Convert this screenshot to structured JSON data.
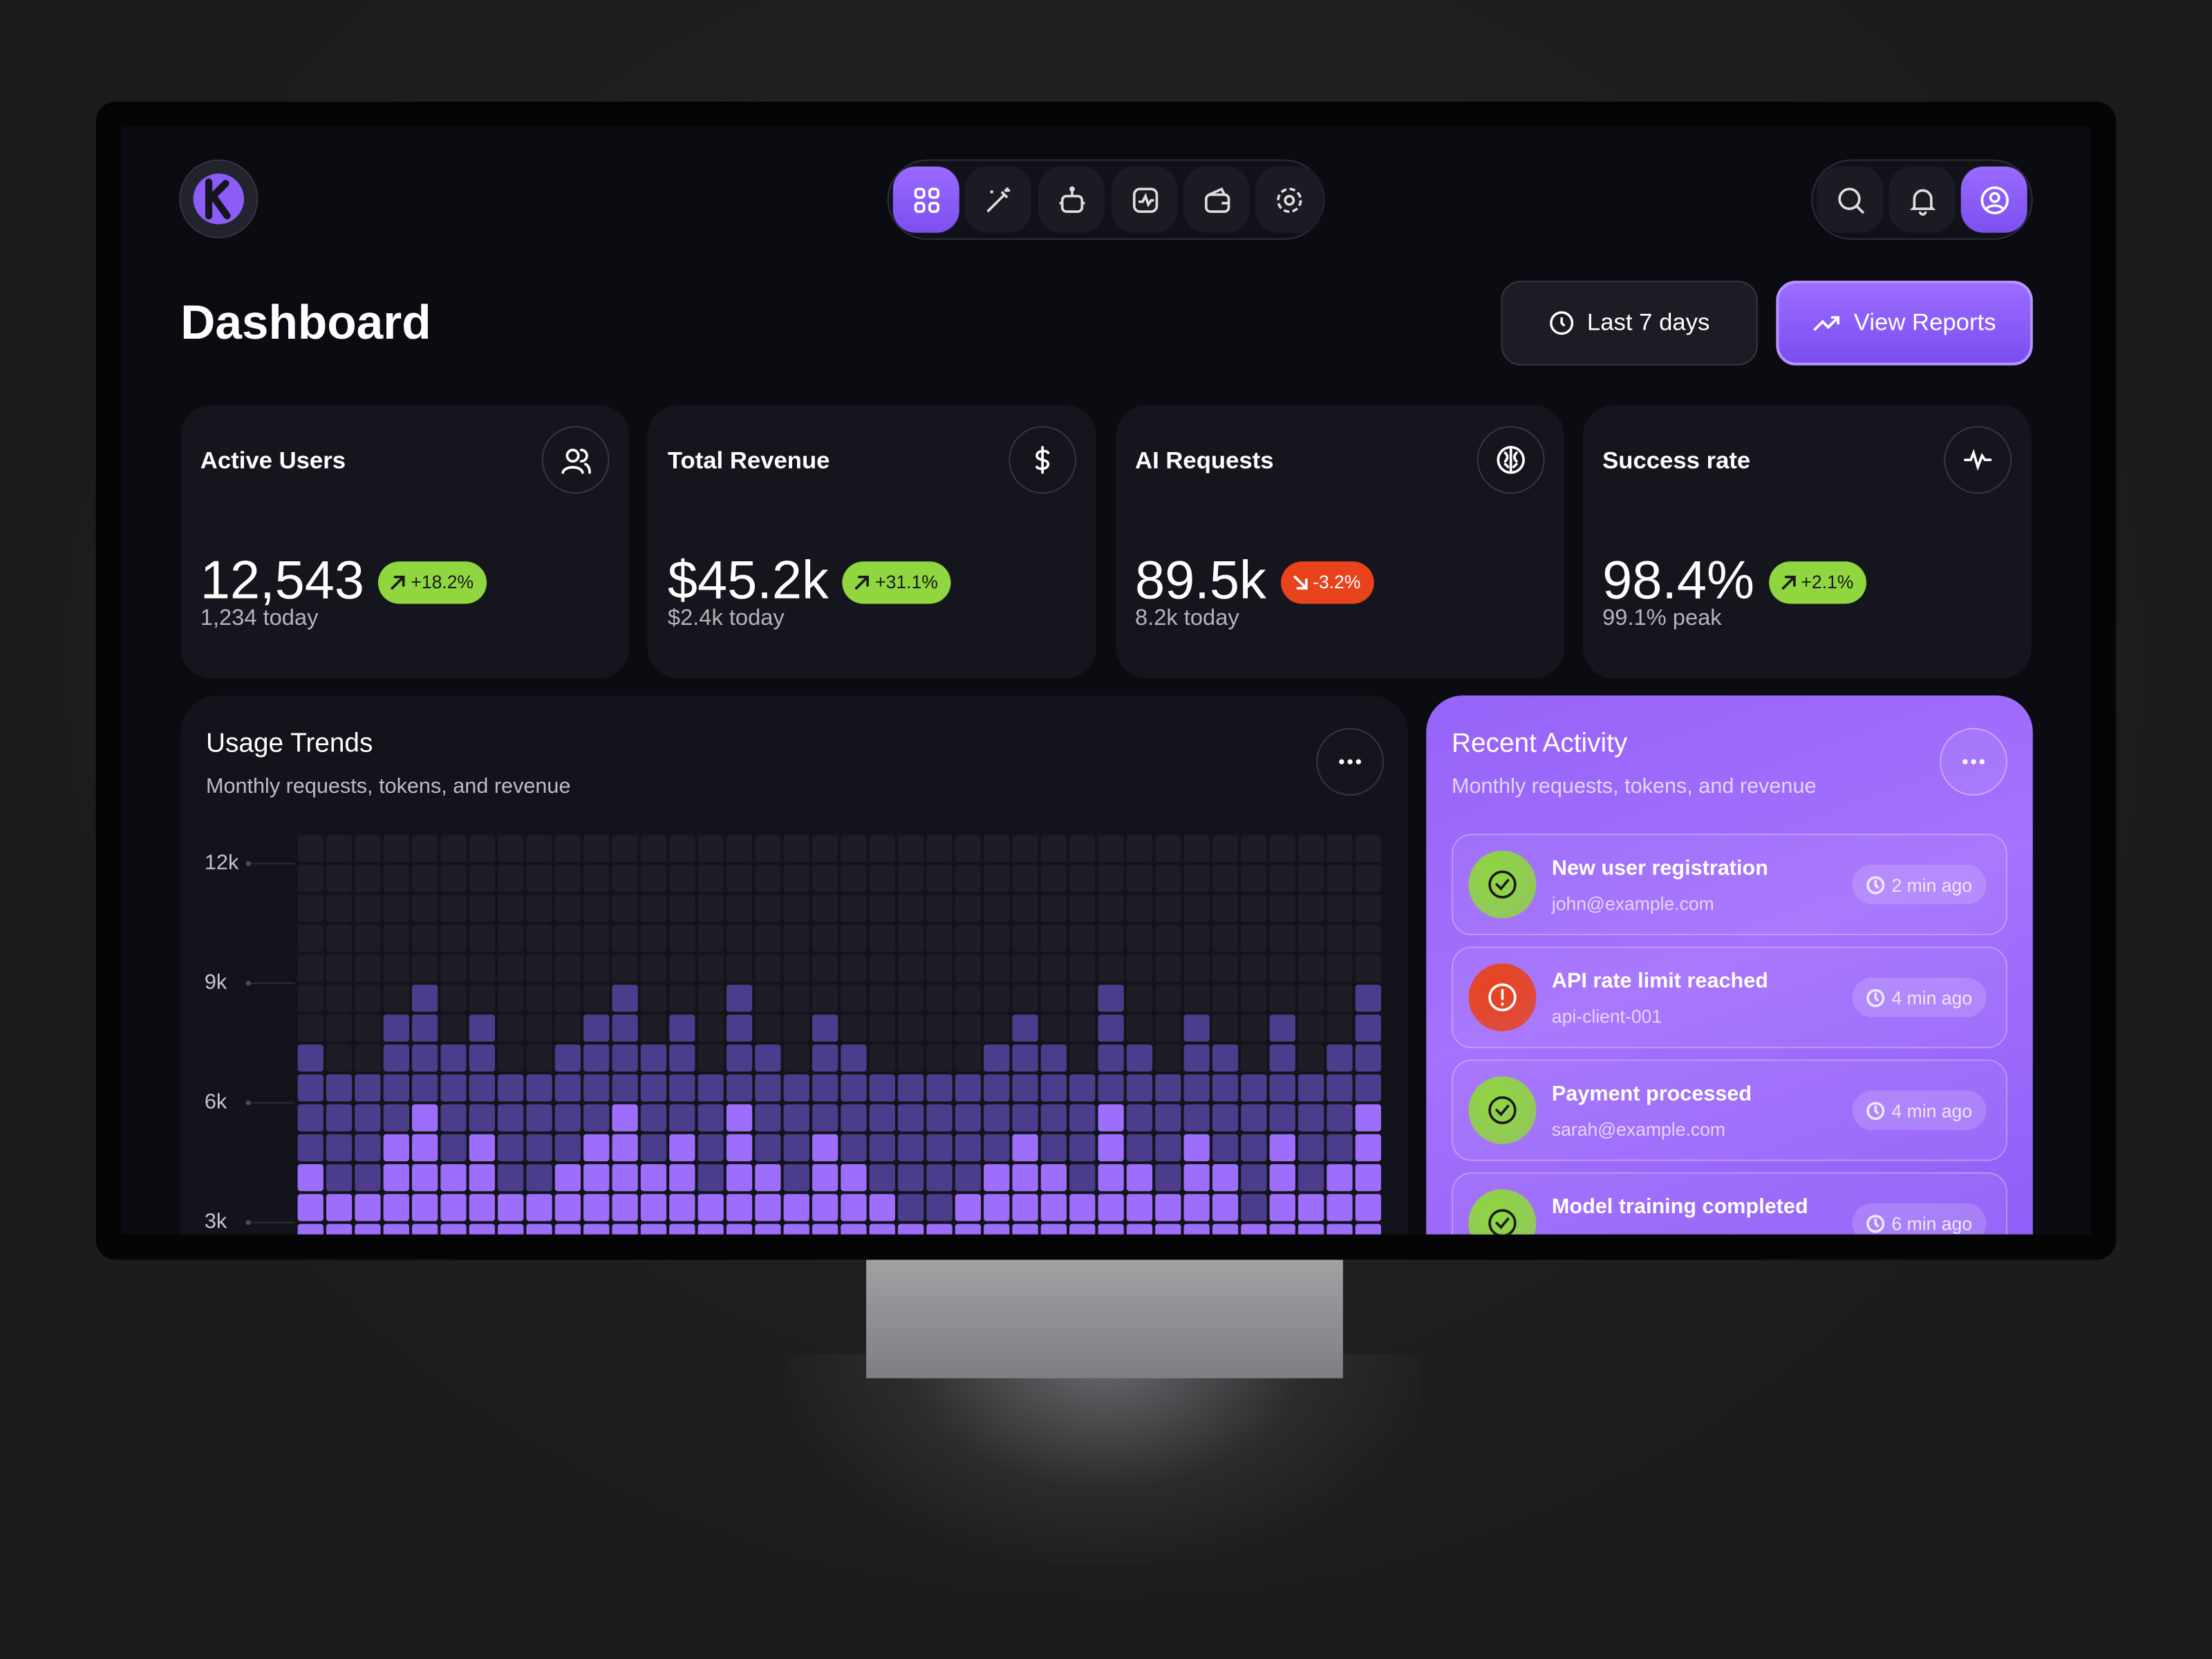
{
  "header": {
    "title": "Dashboard",
    "range_button": "Last 7 days",
    "reports_button": "View Reports"
  },
  "stats": [
    {
      "title": "Active Users",
      "value": "12,543",
      "change": "+18.2%",
      "arrow": "up",
      "badge_color": "#8fd63f",
      "note": "1,234 today"
    },
    {
      "title": "Total Revenue",
      "value": "$45.2k",
      "change": "+31.1%",
      "arrow": "up",
      "badge_color": "#8fd63f",
      "note": "$2.4k today"
    },
    {
      "title": "AI Requests",
      "value": "89.5k",
      "change": "-3.2%",
      "arrow": "down",
      "badge_color": "#e8431c",
      "note": "8.2k today"
    },
    {
      "title": "Success rate",
      "value": "98.4%",
      "change": "+2.1%",
      "arrow": "up",
      "badge_color": "#8fd63f",
      "note": "99.1% peak"
    }
  ],
  "usage_trends": {
    "title": "Usage Trends",
    "subtitle": "Monthly requests, tokens, and revenue",
    "chart": {
      "type": "bar",
      "stacked": true,
      "cell": 750,
      "empty_color": "#1c1d25",
      "ylim": [
        0,
        12750
      ],
      "yticks": [
        {
          "value": 12000,
          "label": "12k"
        },
        {
          "value": 9000,
          "label": "9k"
        },
        {
          "value": 6000,
          "label": "6k"
        },
        {
          "value": 3000,
          "label": "3k"
        }
      ],
      "series": [
        {
          "color": "#9d6dfc",
          "values": [
            4500,
            3750,
            3750,
            5250,
            6000,
            4500,
            5250,
            3750,
            3750,
            4500,
            5250,
            6000,
            4500,
            5250,
            3750,
            6000,
            4500,
            3750,
            5250,
            4500,
            3750,
            3000,
            3000,
            3750,
            4500,
            5250,
            4500,
            3750,
            6000,
            4500,
            3750,
            5250,
            4500,
            3000,
            5250,
            3750,
            4500,
            6000
          ]
        },
        {
          "color": "#4b3d8c",
          "values": [
            3000,
            3000,
            3000,
            3000,
            3000,
            3000,
            3000,
            3000,
            3000,
            3000,
            3000,
            3000,
            3000,
            3000,
            3000,
            3000,
            3000,
            3000,
            3000,
            3000,
            3000,
            3750,
            3750,
            3000,
            3000,
            3000,
            3000,
            3000,
            3000,
            3000,
            3000,
            3000,
            3000,
            3750,
            3000,
            3000,
            3000,
            3000
          ]
        }
      ]
    }
  },
  "activity": {
    "title": "Recent Activity",
    "subtitle": "Monthly requests, tokens, and revenue",
    "items": [
      {
        "title": "New user registration",
        "detail": "john@example.com",
        "time": "2 min ago",
        "status": "ok",
        "color": "#8fd63f"
      },
      {
        "title": "API rate limit reached",
        "detail": "api-client-001",
        "time": "4 min ago",
        "status": "alert",
        "color": "#e8431c"
      },
      {
        "title": "Payment processed",
        "detail": "sarah@example.com",
        "time": "4 min ago",
        "status": "ok",
        "color": "#8fd63f"
      },
      {
        "title": "Model training completed",
        "time": "6 min ago",
        "status": "ok",
        "color": "#8fd63f"
      }
    ]
  }
}
